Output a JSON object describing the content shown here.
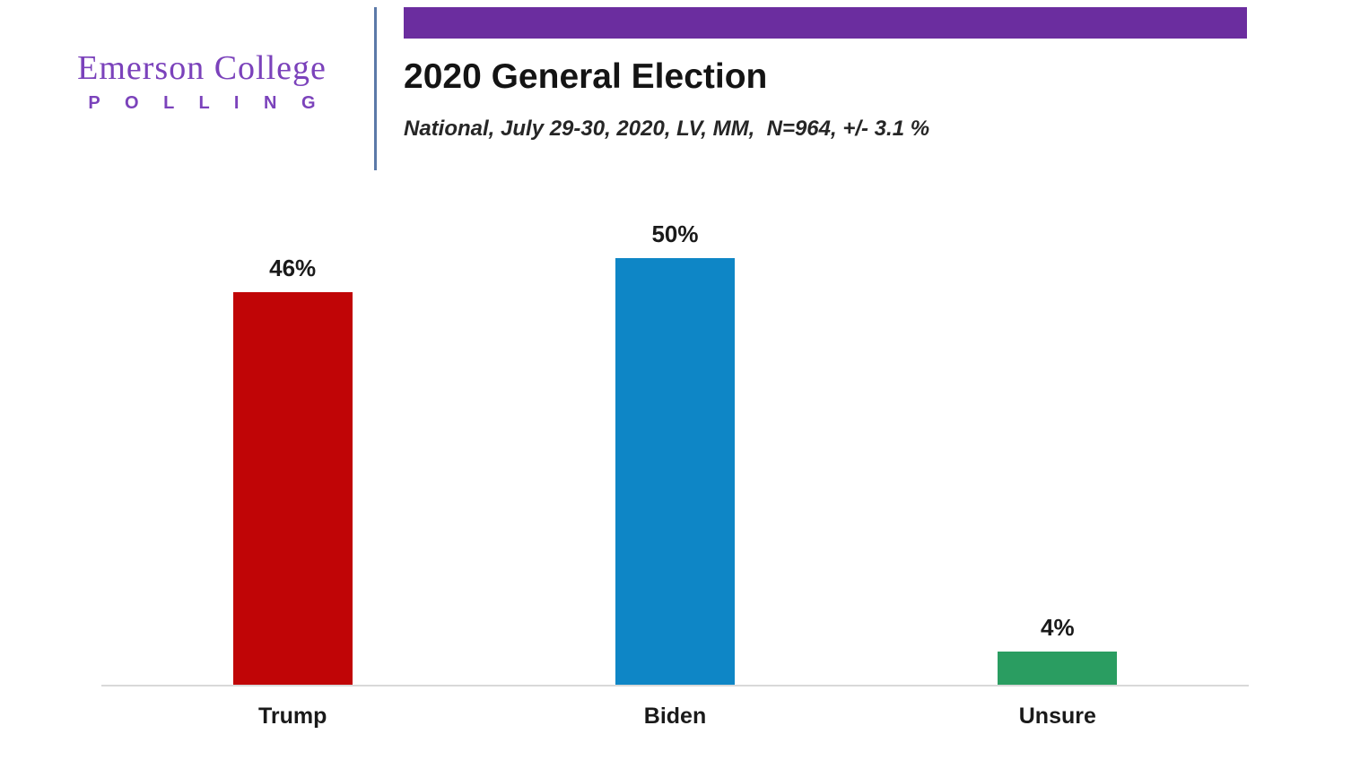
{
  "brand": {
    "name": "Emerson College",
    "subname": "P O L L I N G",
    "color": "#7b42bb",
    "divider_color": "#5b79a8"
  },
  "header": {
    "banner_color": "#6b2d9f",
    "title": "2020 General Election",
    "subtitle": "National, July 29-30, 2020, LV, MM,  N=964, +/- 3.1 %"
  },
  "chart_data": {
    "type": "bar",
    "title": "2020 General Election",
    "subtitle": "National, July 29-30, 2020, LV, MM, N=964, +/- 3.1 %",
    "categories": [
      "Trump",
      "Biden",
      "Unsure"
    ],
    "values": [
      46,
      50,
      4
    ],
    "value_labels": [
      "46%",
      "50%",
      "4%"
    ],
    "colors": [
      "#c00506",
      "#0e86c6",
      "#2a9d61"
    ],
    "xlabel": "",
    "ylabel": "",
    "ylim": [
      0,
      57
    ],
    "grid": false,
    "legend": false,
    "axis_line_color": "#d9d9d9",
    "data_label_position": "above-bar"
  }
}
